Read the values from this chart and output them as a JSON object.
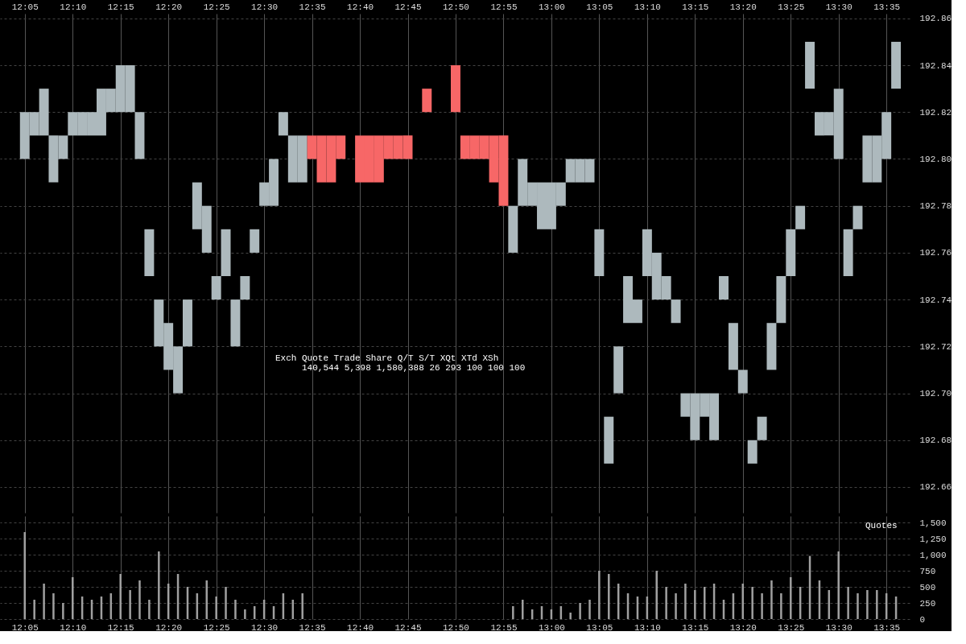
{
  "chart_data": [
    {
      "type": "bar",
      "x": [
        12.0833,
        12.1,
        12.1167,
        12.1333,
        12.15,
        12.1667,
        12.1833,
        12.2,
        12.2167,
        12.2333,
        12.25,
        12.2667,
        12.2833,
        12.3,
        12.3167,
        12.3333,
        12.35,
        12.3667,
        12.3833,
        12.4,
        12.4167,
        12.4333,
        12.45,
        12.4667,
        12.4833,
        12.5,
        12.5167,
        12.5333,
        12.55,
        12.5667,
        12.5833,
        12.6,
        12.6167,
        12.6333,
        12.65,
        12.6667,
        12.6833,
        12.7,
        12.7167,
        12.7333,
        12.75,
        12.7667,
        12.7833,
        12.8,
        12.8167,
        12.8333,
        12.85,
        12.8667,
        12.8833,
        12.9,
        12.9167,
        12.9333,
        12.95,
        12.9667,
        12.9833,
        13.0,
        13.0167,
        13.0333,
        13.05,
        13.0667,
        13.0833,
        13.1,
        13.1167,
        13.1333,
        13.15,
        13.1667,
        13.1833,
        13.2,
        13.2167,
        13.2333,
        13.25,
        13.2667,
        13.2833,
        13.3,
        13.3167,
        13.3333,
        13.35,
        13.3667,
        13.3833,
        13.4,
        13.4167,
        13.4333,
        13.45,
        13.4667,
        13.4833,
        13.5,
        13.5167,
        13.5333,
        13.55,
        13.5667,
        13.5833,
        13.6
      ],
      "base": [
        192.8,
        192.81,
        192.81,
        192.79,
        192.8,
        192.81,
        192.81,
        192.81,
        192.81,
        192.82,
        192.82,
        192.82,
        192.8,
        192.75,
        192.72,
        192.71,
        192.7,
        192.72,
        192.77,
        192.76,
        192.74,
        192.75,
        192.72,
        192.74,
        192.76,
        192.78,
        192.78,
        192.81,
        192.79,
        192.79,
        192.8,
        192.79,
        192.79,
        192.8,
        null,
        192.79,
        192.79,
        192.79,
        192.8,
        192.8,
        192.8,
        null,
        192.82,
        null,
        null,
        192.82,
        192.8,
        192.8,
        192.8,
        192.79,
        192.78,
        192.76,
        192.78,
        192.78,
        192.77,
        192.77,
        192.78,
        192.79,
        192.79,
        192.79,
        192.75,
        192.67,
        192.7,
        192.73,
        192.73,
        192.75,
        192.74,
        192.74,
        192.73,
        192.69,
        192.68,
        192.69,
        192.68,
        192.74,
        192.71,
        192.7,
        192.67,
        192.68,
        192.71,
        192.73,
        192.75,
        192.77,
        192.83,
        192.81,
        192.81,
        192.8,
        192.75,
        192.77,
        192.79,
        192.79,
        192.8,
        192.83
      ],
      "values": [
        0.02,
        0.01,
        0.02,
        0.02,
        0.01,
        0.01,
        0.01,
        0.01,
        0.02,
        0.01,
        0.02,
        0.02,
        0.02,
        0.02,
        0.02,
        0.02,
        0.02,
        0.02,
        0.02,
        0.02,
        0.01,
        0.02,
        0.02,
        0.01,
        0.01,
        0.01,
        0.02,
        0.01,
        0.02,
        0.02,
        0.01,
        0.02,
        0.02,
        0.01,
        null,
        0.02,
        0.02,
        0.02,
        0.01,
        0.01,
        0.01,
        null,
        0.01,
        null,
        null,
        0.02,
        0.01,
        0.01,
        0.01,
        0.02,
        0.03,
        0.02,
        0.02,
        0.01,
        0.02,
        0.02,
        0.01,
        0.01,
        0.01,
        0.01,
        0.02,
        0.02,
        0.02,
        0.02,
        0.01,
        0.02,
        0.02,
        0.01,
        0.01,
        0.01,
        0.02,
        0.01,
        0.02,
        0.01,
        0.02,
        0.01,
        0.01,
        0.01,
        0.02,
        0.02,
        0.02,
        0.01,
        0.02,
        0.01,
        0.01,
        0.03,
        0.02,
        0.01,
        0.02,
        0.02,
        0.02,
        0.02
      ],
      "colors": [
        "#adb9bd",
        "#adb9bd",
        "#adb9bd",
        "#adb9bd",
        "#adb9bd",
        "#adb9bd",
        "#adb9bd",
        "#adb9bd",
        "#adb9bd",
        "#adb9bd",
        "#adb9bd",
        "#adb9bd",
        "#adb9bd",
        "#adb9bd",
        "#adb9bd",
        "#adb9bd",
        "#adb9bd",
        "#adb9bd",
        "#adb9bd",
        "#adb9bd",
        "#adb9bd",
        "#adb9bd",
        "#adb9bd",
        "#adb9bd",
        "#adb9bd",
        "#adb9bd",
        "#adb9bd",
        "#adb9bd",
        "#adb9bd",
        "#adb9bd",
        "#f76767",
        "#f76767",
        "#f76767",
        "#f76767",
        null,
        "#f76767",
        "#f76767",
        "#f76767",
        "#f76767",
        "#f76767",
        "#f76767",
        null,
        "#f76767",
        null,
        null,
        "#f76767",
        "#f76767",
        "#f76767",
        "#f76767",
        "#f76767",
        "#f76767",
        "#adb9bd",
        "#adb9bd",
        "#adb9bd",
        "#adb9bd",
        "#adb9bd",
        "#adb9bd",
        "#adb9bd",
        "#adb9bd",
        "#adb9bd",
        "#adb9bd",
        "#adb9bd",
        "#adb9bd",
        "#adb9bd",
        "#adb9bd",
        "#adb9bd",
        "#adb9bd",
        "#adb9bd",
        "#adb9bd",
        "#adb9bd",
        "#adb9bd",
        "#adb9bd",
        "#adb9bd",
        "#adb9bd",
        "#adb9bd",
        "#adb9bd",
        "#adb9bd",
        "#adb9bd",
        "#adb9bd",
        "#adb9bd",
        "#adb9bd",
        "#adb9bd",
        "#adb9bd",
        "#adb9bd",
        "#adb9bd",
        "#adb9bd",
        "#adb9bd",
        "#adb9bd",
        "#adb9bd",
        "#adb9bd",
        "#adb9bd",
        "#adb9bd"
      ],
      "xlim": [
        12.0472,
        13.6167
      ],
      "xticks": [
        {
          "value": 12.0833,
          "label": "12:05"
        },
        {
          "value": 12.1667,
          "label": "12:10"
        },
        {
          "value": 12.25,
          "label": "12:15"
        },
        {
          "value": 12.3333,
          "label": "12:20"
        },
        {
          "value": 12.4167,
          "label": "12:25"
        },
        {
          "value": 12.5,
          "label": "12:30"
        },
        {
          "value": 12.5833,
          "label": "12:35"
        },
        {
          "value": 12.6667,
          "label": "12:40"
        },
        {
          "value": 12.75,
          "label": "12:45"
        },
        {
          "value": 12.8333,
          "label": "12:50"
        },
        {
          "value": 12.9167,
          "label": "12:55"
        },
        {
          "value": 13.0,
          "label": "13:00"
        },
        {
          "value": 13.0833,
          "label": "13:05"
        },
        {
          "value": 13.1667,
          "label": "13:10"
        },
        {
          "value": 13.25,
          "label": "13:15"
        },
        {
          "value": 13.3333,
          "label": "13:20"
        },
        {
          "value": 13.4167,
          "label": "13:25"
        },
        {
          "value": 13.5,
          "label": "13:30"
        },
        {
          "value": 13.5833,
          "label": "13:35"
        }
      ],
      "ylim": [
        192.649,
        192.862
      ],
      "yticks": [
        192.66,
        192.68,
        {
          "value": 192.7,
          "label": "192.70"
        },
        192.72,
        192.74,
        192.76,
        192.78,
        {
          "value": 192.8,
          "label": "192.80"
        },
        192.82,
        192.84,
        192.86
      ],
      "grid": true,
      "annotations": [
        "Exch   Quote Trade      Share  Q/T    S/T  XQt XTd XSh",
        "140,544 5,398 1,580,388     26    293 100 100 100"
      ]
    },
    {
      "type": "bar",
      "x": [
        12.0833,
        12.1,
        12.1167,
        12.1333,
        12.15,
        12.1667,
        12.1833,
        12.2,
        12.2167,
        12.2333,
        12.25,
        12.2667,
        12.2833,
        12.3,
        12.3167,
        12.3333,
        12.35,
        12.3667,
        12.3833,
        12.4,
        12.4167,
        12.4333,
        12.45,
        12.4667,
        12.4833,
        12.5,
        12.5167,
        12.5333,
        12.55,
        12.5667,
        12.5833,
        12.6,
        12.6167,
        12.6333,
        12.65,
        12.6667,
        12.6833,
        12.7,
        12.7167,
        12.7333,
        12.75,
        12.7667,
        12.7833,
        12.8,
        12.8167,
        12.8333,
        12.85,
        12.8667,
        12.8833,
        12.9,
        12.9167,
        12.9333,
        12.95,
        12.9667,
        12.9833,
        13.0,
        13.0167,
        13.0333,
        13.05,
        13.0667,
        13.0833,
        13.1,
        13.1167,
        13.1333,
        13.15,
        13.1667,
        13.1833,
        13.2,
        13.2167,
        13.2333,
        13.25,
        13.2667,
        13.2833,
        13.3,
        13.3167,
        13.3333,
        13.35,
        13.3667,
        13.3833,
        13.4,
        13.4167,
        13.4333,
        13.45,
        13.4667,
        13.4833,
        13.5,
        13.5167,
        13.5333,
        13.55,
        13.5667,
        13.5833,
        13.6
      ],
      "values": [
        1350,
        300,
        550,
        400,
        250,
        650,
        350,
        300,
        350,
        400,
        700,
        450,
        600,
        300,
        1050,
        550,
        700,
        500,
        400,
        600,
        350,
        500,
        300,
        150,
        200,
        300,
        200,
        400,
        300,
        400,
        null,
        null,
        null,
        null,
        null,
        null,
        null,
        null,
        null,
        null,
        null,
        null,
        null,
        null,
        null,
        null,
        null,
        null,
        null,
        null,
        null,
        200,
        300,
        150,
        200,
        150,
        200,
        100,
        250,
        300,
        750,
        700,
        550,
        400,
        350,
        350,
        750,
        500,
        400,
        550,
        450,
        500,
        550,
        300,
        400,
        550,
        500,
        400,
        600,
        400,
        650,
        500,
        980,
        600,
        450,
        1050,
        500,
        400,
        450,
        450,
        400,
        350
      ],
      "color": "#a0a0a0",
      "xlim": [
        12.0472,
        13.6167
      ],
      "xticks": [
        {
          "value": 12.0833,
          "label": "12:05"
        },
        {
          "value": 12.1667,
          "label": "12:10"
        },
        {
          "value": 12.25,
          "label": "12:15"
        },
        {
          "value": 12.3333,
          "label": "12:20"
        },
        {
          "value": 12.4167,
          "label": "12:25"
        },
        {
          "value": 12.5,
          "label": "12:30"
        },
        {
          "value": 12.5833,
          "label": "12:35"
        },
        {
          "value": 12.6667,
          "label": "12:40"
        },
        {
          "value": 12.75,
          "label": "12:45"
        },
        {
          "value": 12.8333,
          "label": "12:50"
        },
        {
          "value": 12.9167,
          "label": "12:55"
        },
        {
          "value": 13.0,
          "label": "13:00"
        },
        {
          "value": 13.0833,
          "label": "13:05"
        },
        {
          "value": 13.1667,
          "label": "13:10"
        },
        {
          "value": 13.25,
          "label": "13:15"
        },
        {
          "value": 13.3333,
          "label": "13:20"
        },
        {
          "value": 13.4167,
          "label": "13:25"
        },
        {
          "value": 13.5,
          "label": "13:30"
        },
        {
          "value": 13.5833,
          "label": "13:35"
        }
      ],
      "ylim": [
        0,
        1600
      ],
      "yticks": [
        0,
        250,
        500,
        750,
        {
          "value": 1000,
          "label": "1,000"
        },
        {
          "value": 1250,
          "label": "1,250"
        },
        {
          "value": 1500,
          "label": "1,500"
        }
      ],
      "grid": true,
      "annotations": [
        "Quotes"
      ]
    }
  ]
}
